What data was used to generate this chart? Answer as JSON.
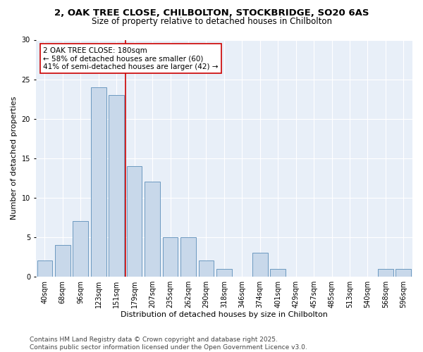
{
  "title_line1": "2, OAK TREE CLOSE, CHILBOLTON, STOCKBRIDGE, SO20 6AS",
  "title_line2": "Size of property relative to detached houses in Chilbolton",
  "xlabel": "Distribution of detached houses by size in Chilbolton",
  "ylabel": "Number of detached properties",
  "categories": [
    "40sqm",
    "68sqm",
    "96sqm",
    "123sqm",
    "151sqm",
    "179sqm",
    "207sqm",
    "235sqm",
    "262sqm",
    "290sqm",
    "318sqm",
    "346sqm",
    "374sqm",
    "401sqm",
    "429sqm",
    "457sqm",
    "485sqm",
    "513sqm",
    "540sqm",
    "568sqm",
    "596sqm"
  ],
  "values": [
    2,
    4,
    7,
    24,
    23,
    14,
    12,
    5,
    5,
    2,
    1,
    0,
    3,
    1,
    0,
    0,
    0,
    0,
    0,
    1,
    1
  ],
  "bar_color": "#c8d8ea",
  "bar_edge_color": "#5b8db8",
  "vline_index": 4,
  "vline_color": "#cc0000",
  "annotation_text": "2 OAK TREE CLOSE: 180sqm\n← 58% of detached houses are smaller (60)\n41% of semi-detached houses are larger (42) →",
  "annotation_box_facecolor": "#ffffff",
  "annotation_box_edgecolor": "#cc0000",
  "ylim": [
    0,
    30
  ],
  "yticks": [
    0,
    5,
    10,
    15,
    20,
    25,
    30
  ],
  "background_color": "#e8eff8",
  "grid_color": "#ffffff",
  "footer_text": "Contains HM Land Registry data © Crown copyright and database right 2025.\nContains public sector information licensed under the Open Government Licence v3.0.",
  "title_fontsize": 9.5,
  "subtitle_fontsize": 8.5,
  "axis_label_fontsize": 8,
  "tick_fontsize": 7,
  "annotation_fontsize": 7.5,
  "footer_fontsize": 6.5
}
